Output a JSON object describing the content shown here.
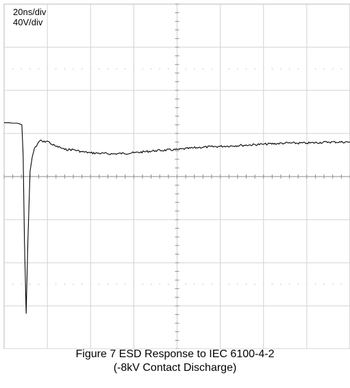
{
  "chart_data": {
    "type": "line",
    "title": "",
    "xlabel": "",
    "ylabel": "",
    "time_per_div_label": "20ns/div",
    "volts_per_div_label": "40V/div",
    "x_divisions": 8,
    "y_divisions": 8,
    "x_unit": "ns",
    "y_unit": "V",
    "xlim": [
      0,
      160
    ],
    "ylim": [
      -160,
      160
    ],
    "grid": true,
    "series": [
      {
        "name": "",
        "color": "#000000",
        "x": [
          0,
          2,
          4,
          6,
          7,
          8.2,
          8.8,
          9.4,
          10.2,
          11,
          12,
          13,
          14,
          15,
          16,
          17,
          18,
          20,
          22,
          24,
          26,
          28,
          32,
          36,
          40,
          50,
          60,
          70,
          80,
          90,
          100,
          110,
          120,
          130,
          140,
          150,
          160
        ],
        "y": [
          50,
          50,
          49.5,
          49.5,
          49,
          48,
          20,
          -60,
          -127,
          -60,
          5,
          18,
          26,
          28,
          32,
          34,
          32,
          33,
          30,
          28,
          27,
          25,
          25,
          23,
          22,
          21,
          22,
          24,
          25,
          27,
          28,
          29,
          30,
          31,
          31,
          32,
          32
        ]
      }
    ]
  },
  "caption": {
    "line1": "Figure 7 ESD Response to IEC 6100-4-2",
    "line2": "(-8kV Contact Discharge)"
  }
}
